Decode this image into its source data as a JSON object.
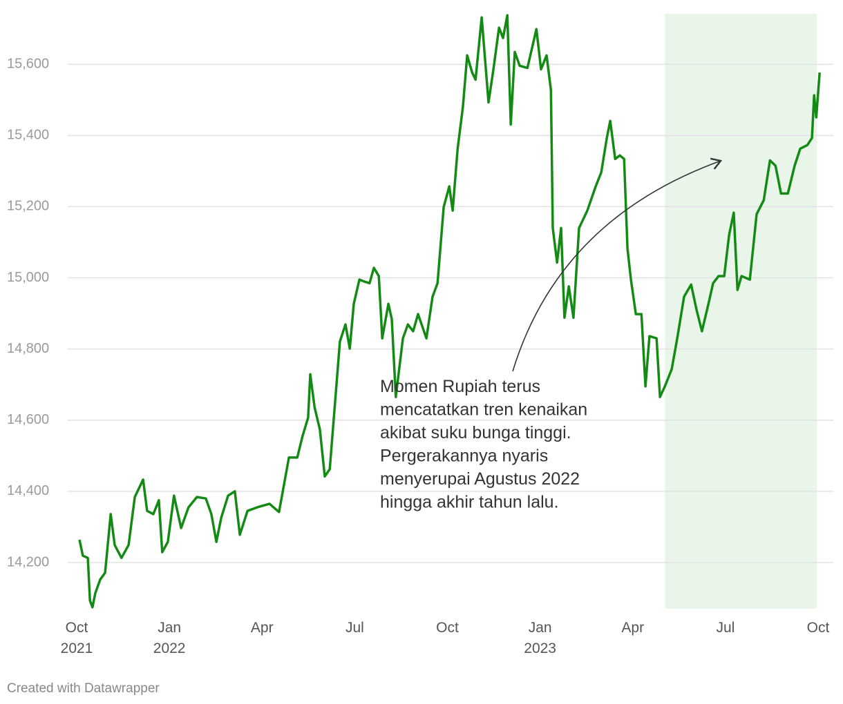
{
  "chart_data": {
    "type": "line",
    "footer": "Created with Datawrapper",
    "annotation": [
      "Momen Rupiah terus",
      "mencatatkan tren kenaikan",
      "akibat suku bunga tinggi.",
      "Pergerakannya nyaris",
      "menyerupai Agustus 2022",
      "hingga akhir tahun lalu."
    ],
    "highlight": {
      "from": 19.04,
      "to": 23.96,
      "color": "#e8f5e8"
    },
    "xlim": [
      0,
      24
    ],
    "ylim": [
      14070,
      15742
    ],
    "xticks": [
      {
        "value": 0,
        "label": "Oct\n2021"
      },
      {
        "value": 3,
        "label": "Jan\n2022"
      },
      {
        "value": 6,
        "label": "Apr"
      },
      {
        "value": 9,
        "label": "Jul"
      },
      {
        "value": 12,
        "label": "Oct"
      },
      {
        "value": 15,
        "label": "Jan\n2023"
      },
      {
        "value": 18,
        "label": "Apr"
      },
      {
        "value": 21,
        "label": "Jul"
      },
      {
        "value": 24,
        "label": "Oct"
      }
    ],
    "yticks": [
      {
        "value": 14200,
        "label": "14,200"
      },
      {
        "value": 14400,
        "label": "14,400"
      },
      {
        "value": 14600,
        "label": "14,600"
      },
      {
        "value": 14800,
        "label": "14,800"
      },
      {
        "value": 15000,
        "label": "15,000"
      },
      {
        "value": 15200,
        "label": "15,200"
      },
      {
        "value": 15400,
        "label": "15,400"
      },
      {
        "value": 15600,
        "label": "15,600"
      }
    ],
    "grid": true,
    "series": [
      {
        "color": "#138a13",
        "x": [
          0.09,
          0.2,
          0.36,
          0.43,
          0.51,
          0.6,
          0.76,
          0.92,
          1.1,
          1.23,
          1.45,
          1.68,
          1.88,
          2.15,
          2.28,
          2.48,
          2.66,
          2.77,
          2.95,
          3.15,
          3.38,
          3.62,
          3.89,
          4.18,
          4.36,
          4.52,
          4.68,
          4.9,
          5.12,
          5.28,
          5.53,
          5.84,
          6.24,
          6.55,
          6.76,
          6.87,
          7.14,
          7.31,
          7.49,
          7.56,
          7.7,
          7.87,
          8.03,
          8.19,
          8.39,
          8.52,
          8.7,
          8.84,
          8.97,
          9.15,
          9.33,
          9.48,
          9.62,
          9.78,
          9.89,
          10.09,
          10.2,
          10.33,
          10.56,
          10.72,
          10.89,
          11.05,
          11.32,
          11.52,
          11.68,
          11.88,
          12.06,
          12.17,
          12.33,
          12.5,
          12.64,
          12.8,
          12.91,
          13.11,
          13.33,
          13.49,
          13.67,
          13.8,
          13.94,
          14.05,
          14.18,
          14.34,
          14.59,
          14.88,
          15.03,
          15.21,
          15.35,
          15.41,
          15.55,
          15.68,
          15.79,
          15.93,
          16.08,
          16.26,
          16.53,
          16.8,
          16.98,
          17.16,
          17.27,
          17.43,
          17.58,
          17.72,
          17.83,
          17.94,
          18.1,
          18.28,
          18.41,
          18.54,
          18.77,
          18.88,
          19.04,
          19.26,
          19.44,
          19.66,
          19.89,
          20.07,
          20.24,
          20.45,
          20.6,
          20.78,
          20.96,
          21.12,
          21.27,
          21.39,
          21.52,
          21.79,
          22.01,
          22.24,
          22.44,
          22.62,
          22.8,
          23.02,
          23.24,
          23.42,
          23.65,
          23.8,
          23.87,
          23.94,
          24.05
        ],
        "values": [
          14264,
          14219,
          14213,
          14093,
          14074,
          14113,
          14152,
          14171,
          14336,
          14249,
          14213,
          14249,
          14384,
          14433,
          14345,
          14336,
          14375,
          14229,
          14258,
          14388,
          14297,
          14355,
          14384,
          14380,
          14336,
          14258,
          14326,
          14388,
          14400,
          14278,
          14345,
          14355,
          14365,
          14342,
          14442,
          14495,
          14495,
          14555,
          14607,
          14729,
          14636,
          14574,
          14442,
          14462,
          14679,
          14821,
          14869,
          14801,
          14927,
          14995,
          14989,
          14985,
          15028,
          15005,
          14830,
          14927,
          14884,
          14665,
          14830,
          14869,
          14850,
          14898,
          14830,
          14947,
          14985,
          15199,
          15257,
          15189,
          15363,
          15480,
          15625,
          15577,
          15557,
          15732,
          15493,
          15586,
          15703,
          15674,
          15738,
          15431,
          15635,
          15596,
          15590,
          15699,
          15586,
          15625,
          15528,
          15140,
          15043,
          15140,
          14888,
          14976,
          14888,
          15140,
          15189,
          15257,
          15296,
          15393,
          15441,
          15334,
          15344,
          15334,
          15082,
          14995,
          14898,
          14898,
          14695,
          14836,
          14830,
          14665,
          14695,
          14743,
          14830,
          14947,
          14981,
          14908,
          14850,
          14927,
          14985,
          15005,
          15005,
          15121,
          15183,
          14966,
          15005,
          14995,
          15179,
          15218,
          15330,
          15315,
          15237,
          15237,
          15315,
          15363,
          15373,
          15393,
          15513,
          15451,
          15577
        ]
      }
    ]
  }
}
